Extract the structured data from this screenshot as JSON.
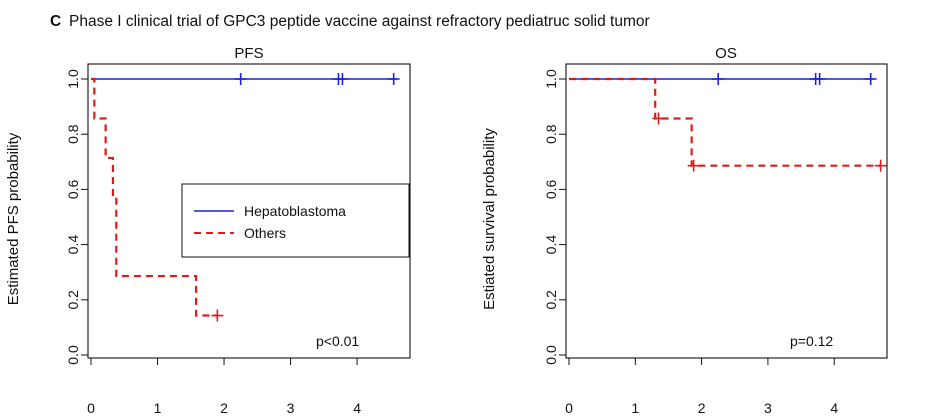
{
  "figure": {
    "panel_letter": "C",
    "panel_title": "Phase I clinical trial of GPC3 peptide vaccine against refractory pediatruc solid tumor"
  },
  "colors": {
    "hepatoblastoma": "#1f1fe0",
    "others": "#e01b1b",
    "axis": "#111111"
  },
  "chart_data": [
    {
      "type": "line",
      "subtype": "kaplan-meier",
      "title": "PFS",
      "xlabel": "",
      "ylabel": "Estimated PFS probability",
      "xlim": [
        0,
        4.6
      ],
      "ylim": [
        0,
        1
      ],
      "xticks": [
        0,
        1,
        2,
        3,
        4
      ],
      "yticks": [
        0.0,
        0.2,
        0.4,
        0.6,
        0.8,
        1.0
      ],
      "ytick_labels": [
        "0.0",
        "0.2",
        "0.4",
        "0.6",
        "0.8",
        "1.0"
      ],
      "legend": {
        "position": "center-right",
        "entries": [
          {
            "name": "Hepatoblastoma",
            "style": "solid",
            "color_key": "hepatoblastoma"
          },
          {
            "name": "Others",
            "style": "dashed",
            "color_key": "others"
          }
        ]
      },
      "annotation": "p<0.01",
      "series": [
        {
          "name": "Hepatoblastoma",
          "steps": [
            [
              0,
              1.0
            ],
            [
              4.6,
              1.0
            ]
          ],
          "censored": [
            [
              2.25,
              1.0
            ],
            [
              3.72,
              1.0
            ],
            [
              3.78,
              1.0
            ],
            [
              4.55,
              1.0
            ]
          ]
        },
        {
          "name": "Others",
          "steps": [
            [
              0,
              1.0
            ],
            [
              0.05,
              0.857
            ],
            [
              0.22,
              0.714
            ],
            [
              0.33,
              0.571
            ],
            [
              0.38,
              0.286
            ],
            [
              1.58,
              0.143
            ],
            [
              1.9,
              0.143
            ]
          ],
          "censored": [
            [
              1.9,
              0.143
            ]
          ]
        }
      ]
    },
    {
      "type": "line",
      "subtype": "kaplan-meier",
      "title": "OS",
      "xlabel": "",
      "ylabel": "Estiated survival probability",
      "xlim": [
        0,
        4.7
      ],
      "ylim": [
        0,
        1
      ],
      "xticks": [
        0,
        1,
        2,
        3,
        4
      ],
      "yticks": [
        0.0,
        0.2,
        0.4,
        0.6,
        0.8,
        1.0
      ],
      "ytick_labels": [
        "0.0",
        "0.2",
        "0.4",
        "0.6",
        "0.8",
        "1.0"
      ],
      "annotation": "p=0.12",
      "series": [
        {
          "name": "Hepatoblastoma",
          "steps": [
            [
              0,
              1.0
            ],
            [
              4.6,
              1.0
            ]
          ],
          "censored": [
            [
              2.25,
              1.0
            ],
            [
              3.72,
              1.0
            ],
            [
              3.78,
              1.0
            ],
            [
              4.55,
              1.0
            ]
          ]
        },
        {
          "name": "Others",
          "steps": [
            [
              0,
              1.0
            ],
            [
              1.3,
              0.857
            ],
            [
              1.85,
              0.686
            ],
            [
              4.7,
              0.686
            ]
          ],
          "censored": [
            [
              1.35,
              0.857
            ],
            [
              1.88,
              0.686
            ],
            [
              4.7,
              0.686
            ]
          ]
        }
      ]
    }
  ]
}
